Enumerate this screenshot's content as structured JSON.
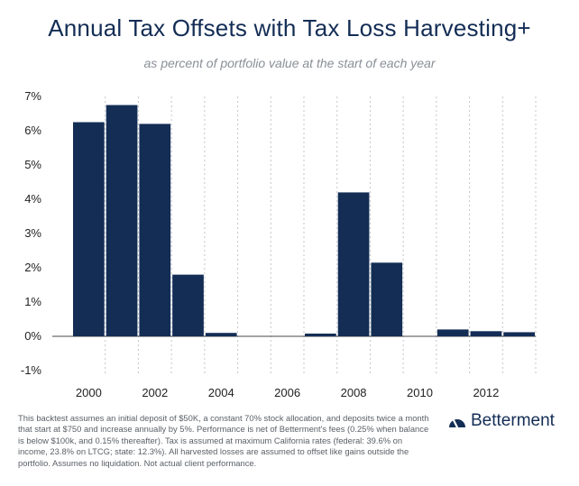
{
  "header": {
    "title": "Annual Tax Offsets with Tax Loss Harvesting+",
    "subtitle": "as percent of portfolio value at the start of each year"
  },
  "footnote": "This backtest assumes an initial deposit of $50K, a constant 70% stock allocation, and deposits twice a month that start at $750 and increase annually by 5%. Performance is net of Betterment's fees (0.25% when balance is below $100k, and 0.15% thereafter). Tax is assumed at maximum California rates (federal: 39.6% on income, 23.8% on LTCG; state: 12.3%). All harvested losses are assumed to offset like gains outside the portfolio. Assumes no liquidation. Not actual client performance.",
  "brand": {
    "name": "Betterment",
    "icon": "betterment-gauge-icon",
    "color": "#132d55"
  },
  "colors": {
    "bar": "#132d55",
    "text": "#132d55"
  },
  "chart_data": {
    "type": "bar",
    "title": "Annual Tax Offsets with Tax Loss Harvesting+",
    "subtitle": "as percent of portfolio value at the start of each year",
    "xlabel": "",
    "ylabel": "",
    "categories": [
      "2000",
      "2001",
      "2002",
      "2003",
      "2004",
      "2005",
      "2006",
      "2007",
      "2008",
      "2009",
      "2010",
      "2011",
      "2012",
      "2013"
    ],
    "values": [
      6.25,
      6.75,
      6.2,
      1.8,
      0.1,
      0,
      0,
      0.08,
      4.2,
      2.15,
      0,
      0.2,
      0.15,
      0.12
    ],
    "x_tick_labels": [
      "2000",
      "2002",
      "2004",
      "2006",
      "2008",
      "2010",
      "2012"
    ],
    "y_ticks": [
      -1,
      0,
      1,
      2,
      3,
      4,
      5,
      6,
      7
    ],
    "y_tick_labels": [
      "-1%",
      "0%",
      "1%",
      "2%",
      "3%",
      "4%",
      "5%",
      "6%",
      "7%"
    ],
    "ylim": [
      -1,
      7
    ],
    "grid": "vertical dotted",
    "legend": "none"
  }
}
